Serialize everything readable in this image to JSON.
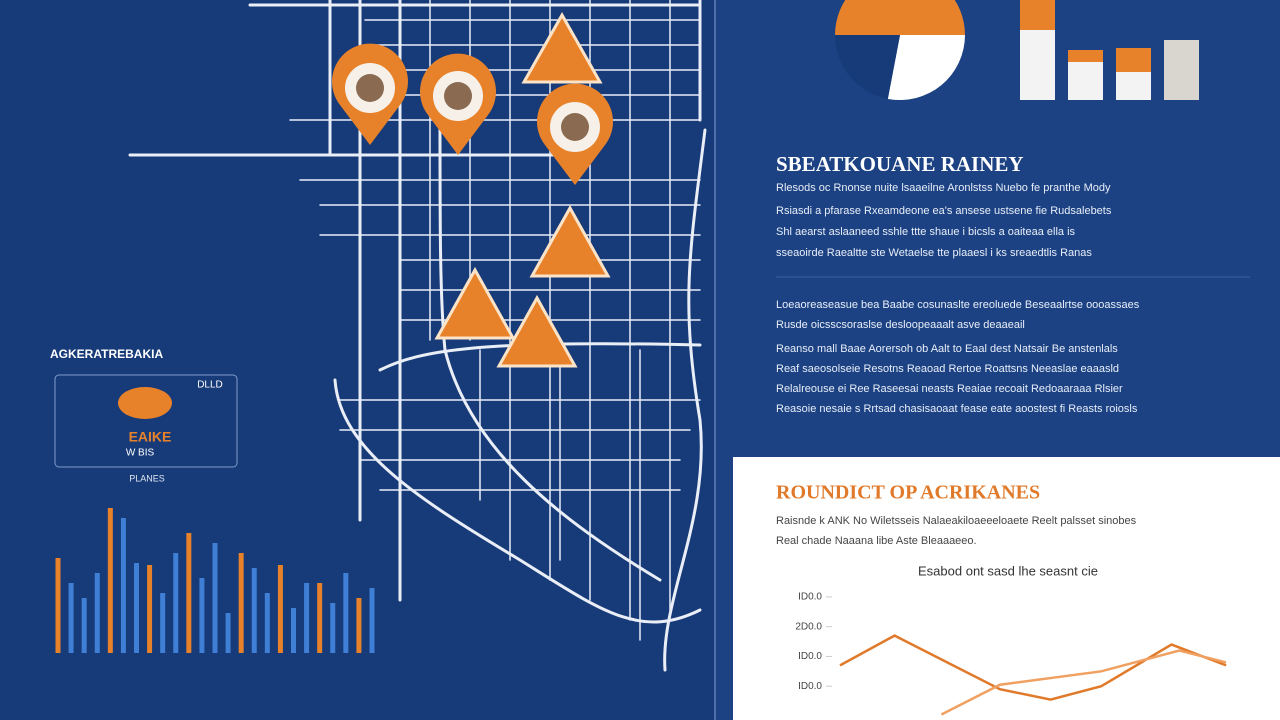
{
  "sidebar": {
    "title": "AGKERATREBAKIA",
    "label": "EAIKE",
    "sublabel": "W BIS",
    "corner": "DLLD",
    "caption": "PLANES",
    "ylim": [
      0,
      150
    ],
    "bars": [
      {
        "color": "#e8822a",
        "value": 95
      },
      {
        "color": "#3f7fd6",
        "value": 70
      },
      {
        "color": "#3f7fd6",
        "value": 55
      },
      {
        "color": "#3f7fd6",
        "value": 80
      },
      {
        "color": "#e8822a",
        "value": 145
      },
      {
        "color": "#3f7fd6",
        "value": 135
      },
      {
        "color": "#3f7fd6",
        "value": 90
      },
      {
        "color": "#e8822a",
        "value": 88
      },
      {
        "color": "#3f7fd6",
        "value": 60
      },
      {
        "color": "#3f7fd6",
        "value": 100
      },
      {
        "color": "#e8822a",
        "value": 120
      },
      {
        "color": "#3f7fd6",
        "value": 75
      },
      {
        "color": "#3f7fd6",
        "value": 110
      },
      {
        "color": "#3f7fd6",
        "value": 40
      },
      {
        "color": "#e8822a",
        "value": 100
      },
      {
        "color": "#3f7fd6",
        "value": 85
      },
      {
        "color": "#3f7fd6",
        "value": 60
      },
      {
        "color": "#e8822a",
        "value": 88
      },
      {
        "color": "#3f7fd6",
        "value": 45
      },
      {
        "color": "#3f7fd6",
        "value": 70
      },
      {
        "color": "#e8822a",
        "value": 70
      },
      {
        "color": "#3f7fd6",
        "value": 50
      },
      {
        "color": "#3f7fd6",
        "value": 80
      },
      {
        "color": "#e8822a",
        "value": 55
      },
      {
        "color": "#3f7fd6",
        "value": 65
      }
    ]
  },
  "top_chart": {
    "pie": [
      {
        "color": "#e8822a",
        "value": 50
      },
      {
        "color": "#ffffff",
        "value": 28
      },
      {
        "color": "#173a78",
        "value": 22
      }
    ],
    "ylim": [
      0,
      100
    ],
    "bars": [
      {
        "color": "#f3f3f3",
        "value": 100,
        "highlight": 30
      },
      {
        "color": "#f3f3f3",
        "value": 50,
        "highlight": 12
      },
      {
        "color": "#f3f3f3",
        "value": 52,
        "highlight": 24
      },
      {
        "color": "#d9d6d0",
        "value": 60,
        "highlight": 0
      }
    ]
  },
  "panel": {
    "title": "SBEATKOUANE RAINEY",
    "paragraph1": [
      "Rlesods oc Rnonse nuite lsaaeilne Aronlstss Nuebo fe pranthe Mody",
      "Rsiasdi a pfarase Rxeamdeone ea's ansese ustsene fie Rudsalebets",
      "Shl aearst aslaaneed sshle ttte shaue i bicsls a oaiteaa ella is",
      "sseaoirde Raealtte ste Wetaelse tte plaaesl i ks sreaedtlis Ranas"
    ],
    "paragraph2": [
      "Loeaoreaseasue bea Baabe cosunaslte ereoluede Beseaalrtse oooassaes",
      "Rusde oicsscsoraslse desloopeaaalt asve deaaeail",
      "Reanso mall Baae Aorersoh ob Aalt to Eaal dest Natsair Be anstenlals",
      "Reaf saeosolseie Resotns Reaoad Rertoe Roattsns Neeaslae eaaasld",
      "Relalreouse ei Ree Raseesai neasts Reaiae recoait Redoaaraaa Rlsier",
      "Reasoie nesaie s Rrtsad chasisaoaat fease eate aoostest fi Reasts roiosls"
    ]
  },
  "card": {
    "title": "ROUNDICT OP ACRIKANES",
    "text": [
      "Raisnde k ANK No Wiletsseis Nalaeakiloaeeeloaete Reelt palsset sinobes",
      "Real chade Naaana libe Aste Bleaaaeeo."
    ],
    "chart": {
      "title": "Esabod ont sasd lhe seasnt cie",
      "xlim": [
        0,
        10
      ],
      "ylim": [
        0,
        4.5
      ],
      "yticks": [
        {
          "value": 4,
          "label": "ID0.0"
        },
        {
          "value": 3,
          "label": "2D0.0"
        },
        {
          "value": 2,
          "label": "ID0.0"
        },
        {
          "value": 1,
          "label": "ID0.0"
        }
      ],
      "series": [
        {
          "color": "#e07a2a",
          "x": [
            0,
            1.4,
            4.1,
            5.4,
            6.7,
            8.5,
            9.9
          ],
          "values": [
            1.7,
            2.7,
            0.9,
            0.55,
            1,
            2.4,
            1.7
          ]
        },
        {
          "color": "#f0a060",
          "x": [
            2.6,
            4.1,
            6.7,
            8.7,
            9.9
          ],
          "values": [
            0.05,
            1.05,
            1.5,
            2.2,
            1.8
          ]
        }
      ]
    }
  }
}
